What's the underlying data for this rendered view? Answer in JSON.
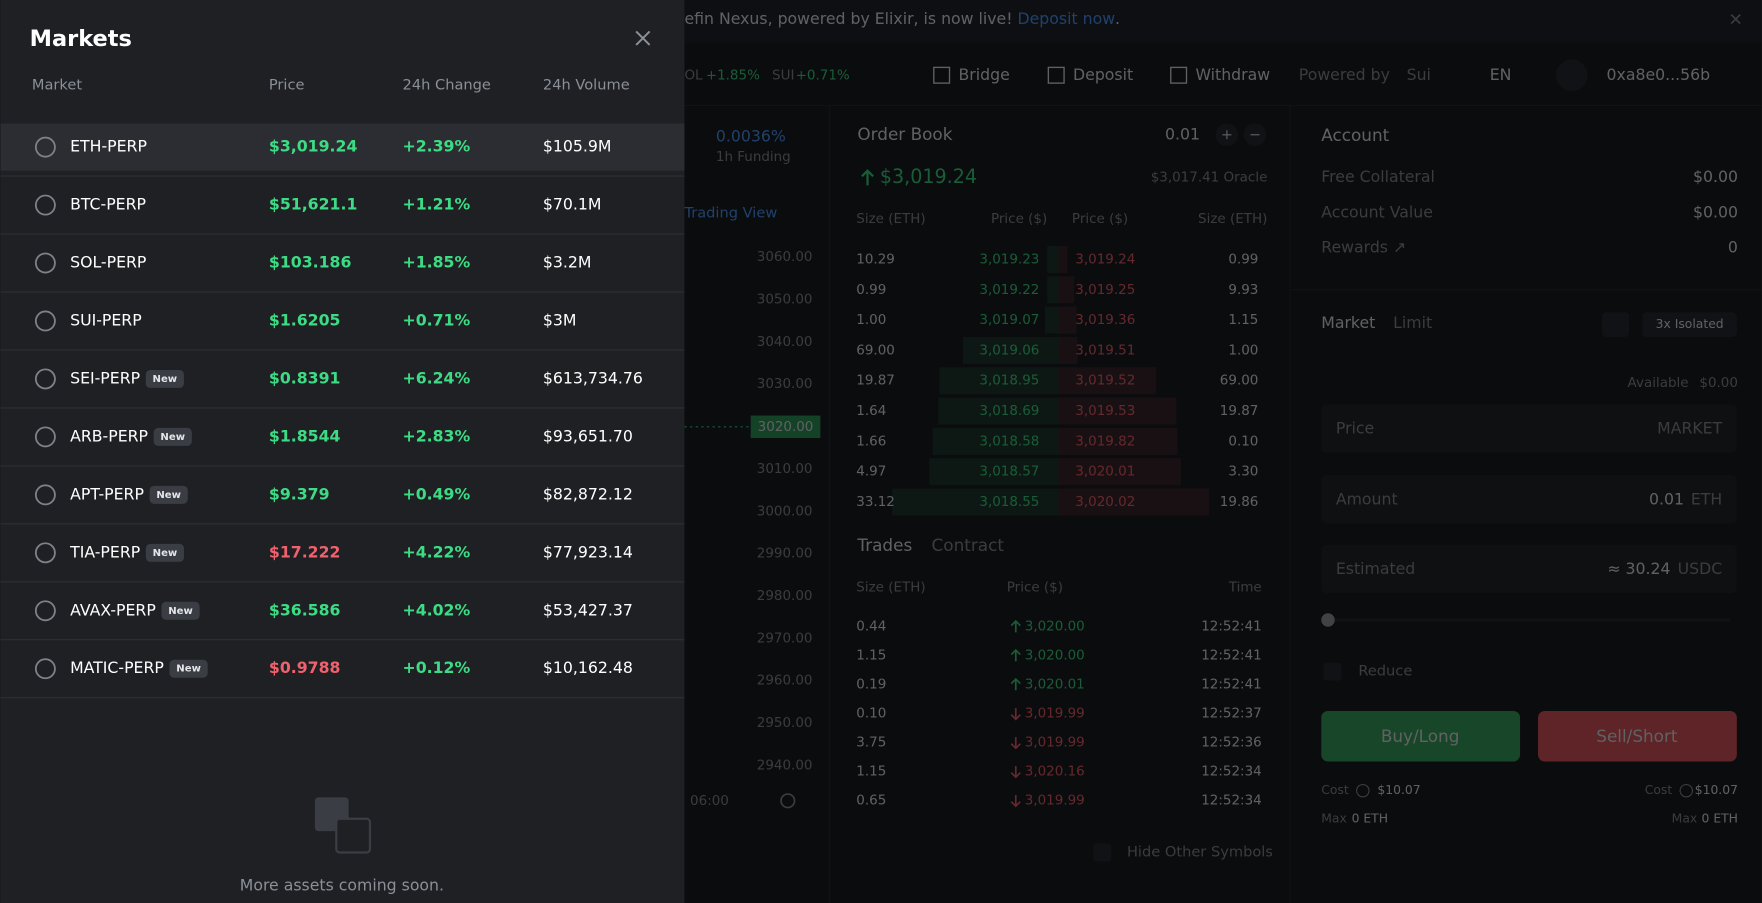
{
  "banner": {
    "text": "efin Nexus, powered by Elixir, is now live! ",
    "link": "Deposit now",
    "end": "."
  },
  "nav": {
    "tickers": [
      {
        "symbol": "OL",
        "change": "+1.85%"
      },
      {
        "symbol": "SUI",
        "change": "+0.71%"
      }
    ],
    "links": [
      "Bridge",
      "Deposit",
      "Withdraw"
    ],
    "powered_by": "Powered by",
    "chain": "Sui",
    "language": "EN",
    "wallet": "0xa8e0...56b"
  },
  "chart": {
    "funding": "0.0036%",
    "funding_label": "1h Funding",
    "trading_view": "Trading View",
    "price_axis": [
      "3060.00",
      "3050.00",
      "3040.00",
      "3030.00",
      "3010.00",
      "3000.00",
      "2990.00",
      "2980.00",
      "2970.00",
      "2960.00",
      "2950.00",
      "2940.00"
    ],
    "current_price": "3020.00",
    "time_label": "06:00"
  },
  "order_book": {
    "title": "Order Book",
    "step": "0.01",
    "price": "$3,019.24",
    "oracle": "$3,017.41 Oracle",
    "headers": [
      "Size (ETH)",
      "Price ($)",
      "Price ($)",
      "Size (ETH)"
    ],
    "rows": [
      [
        "10.29",
        "3,019.23",
        "3,019.24",
        "0.99"
      ],
      [
        "0.99",
        "3,019.22",
        "3,019.25",
        "9.93"
      ],
      [
        "1.00",
        "3,019.07",
        "3,019.36",
        "1.15"
      ],
      [
        "69.00",
        "3,019.06",
        "3,019.51",
        "1.00"
      ],
      [
        "19.87",
        "3,018.95",
        "3,019.52",
        "69.00"
      ],
      [
        "1.64",
        "3,018.69",
        "3,019.53",
        "19.87"
      ],
      [
        "1.66",
        "3,018.58",
        "3,019.82",
        "0.10"
      ],
      [
        "4.97",
        "3,018.57",
        "3,020.01",
        "3.30"
      ],
      [
        "33.12",
        "3,018.55",
        "3,020.02",
        "19.86"
      ]
    ]
  },
  "trades": {
    "title": "Trades",
    "tab": "Contract",
    "headers": [
      "Size (ETH)",
      "Price ($)",
      "Time"
    ],
    "rows": [
      {
        "size": "0.44",
        "price": "3,020.00",
        "time": "12:52:41",
        "side": "up"
      },
      {
        "size": "1.15",
        "price": "3,020.00",
        "time": "12:52:41",
        "side": "up"
      },
      {
        "size": "0.19",
        "price": "3,020.01",
        "time": "12:52:41",
        "side": "up"
      },
      {
        "size": "0.10",
        "price": "3,019.99",
        "time": "12:52:37",
        "side": "down"
      },
      {
        "size": "3.75",
        "price": "3,019.99",
        "time": "12:52:36",
        "side": "down"
      },
      {
        "size": "1.15",
        "price": "3,020.16",
        "time": "12:52:34",
        "side": "down"
      },
      {
        "size": "0.65",
        "price": "3,019.99",
        "time": "12:52:34",
        "side": "down"
      }
    ],
    "hide_symbols": "Hide Other Symbols"
  },
  "account": {
    "title": "Account",
    "rows": [
      {
        "label": "Free Collateral",
        "value": "$0.00"
      },
      {
        "label": "Account Value",
        "value": "$0.00"
      },
      {
        "label": "Rewards ↗",
        "value": "0"
      }
    ],
    "order_types": [
      "Market",
      "Limit"
    ],
    "margin": "3x Isolated",
    "available_label": "Available",
    "available": "$0.00",
    "price_label": "Price",
    "price_value": "MARKET",
    "amount_label": "Amount",
    "amount": "0.01",
    "amount_unit": "ETH",
    "estimated_label": "Estimated",
    "estimated": "≈ 30.24",
    "estimated_unit": "USDC",
    "reduce": "Reduce",
    "buy": "Buy/Long",
    "sell": "Sell/Short",
    "cost_label": "Cost",
    "buy_cost": "$10.07",
    "sell_cost": "$10.07",
    "max_label": "Max",
    "buy_max": "0 ETH",
    "sell_max": "0 ETH"
  },
  "markets": {
    "title": "Markets",
    "headers": [
      "Market",
      "Price",
      "24h Change",
      "24h Volume"
    ],
    "rows": [
      {
        "market": "ETH-PERP",
        "price": "$3,019.24",
        "change": "+2.39%",
        "volume": "$105.9M",
        "trend": "up"
      },
      {
        "market": "BTC-PERP",
        "price": "$51,621.1",
        "change": "+1.21%",
        "volume": "$70.1M",
        "trend": "up"
      },
      {
        "market": "SOL-PERP",
        "price": "$103.186",
        "change": "+1.85%",
        "volume": "$3.2M",
        "trend": "up"
      },
      {
        "market": "SUI-PERP",
        "price": "$1.6205",
        "change": "+0.71%",
        "volume": "$3M",
        "trend": "up"
      },
      {
        "market": "SEI-PERP",
        "badge": "New",
        "price": "$0.8391",
        "change": "+6.24%",
        "volume": "$613,734.76",
        "trend": "up"
      },
      {
        "market": "ARB-PERP",
        "badge": "New",
        "price": "$1.8544",
        "change": "+2.83%",
        "volume": "$93,651.70",
        "trend": "up"
      },
      {
        "market": "APT-PERP",
        "badge": "New",
        "price": "$9.379",
        "change": "+0.49%",
        "volume": "$82,872.12",
        "trend": "up"
      },
      {
        "market": "TIA-PERP",
        "badge": "New",
        "price": "$17.222",
        "change": "+4.22%",
        "volume": "$77,923.14",
        "trend": "down"
      },
      {
        "market": "AVAX-PERP",
        "badge": "New",
        "price": "$36.586",
        "change": "+4.02%",
        "volume": "$53,427.37",
        "trend": "up"
      },
      {
        "market": "MATIC-PERP",
        "badge": "New",
        "price": "$0.9788",
        "change": "+0.12%",
        "volume": "$10,162.48",
        "trend": "down"
      }
    ],
    "footer": "More assets coming soon."
  }
}
